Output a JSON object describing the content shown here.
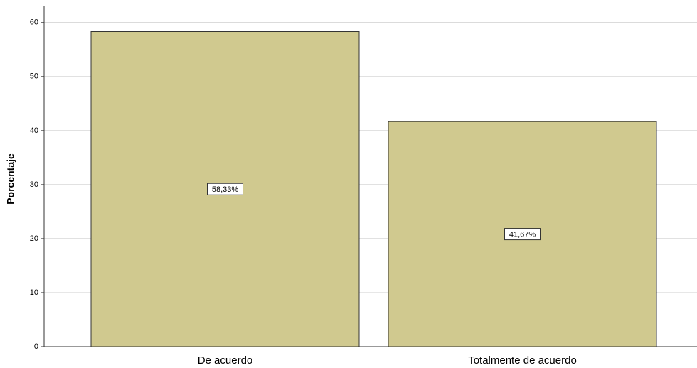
{
  "chart_data": {
    "type": "bar",
    "y_label": "Porcentaje",
    "categories": [
      "De acuerdo",
      "Totalmente de acuerdo"
    ],
    "values": [
      58.33,
      41.67
    ],
    "value_labels": [
      "58,33%",
      "41,67%"
    ],
    "color": "#d0c98f",
    "ylim": [
      0,
      63
    ],
    "yticks": [
      0,
      10,
      20,
      30,
      40,
      50,
      60
    ],
    "grid": true
  }
}
